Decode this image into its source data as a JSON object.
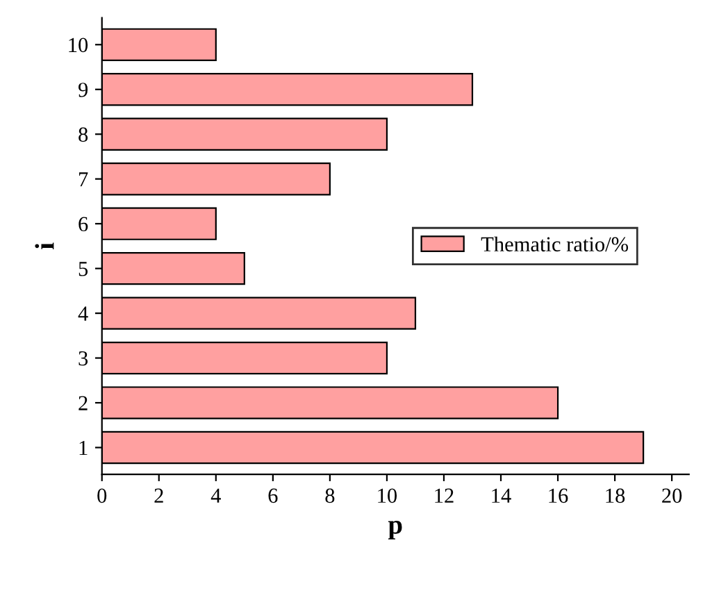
{
  "chart_data": {
    "type": "bar",
    "orientation": "horizontal",
    "xlabel": "p",
    "ylabel": "i",
    "categories": [
      "10",
      "9",
      "8",
      "7",
      "6",
      "5",
      "4",
      "3",
      "2",
      "1"
    ],
    "series": [
      {
        "name": "Thematic ratio/%",
        "color": "#ffa0a0",
        "values": [
          4,
          13,
          10,
          8,
          4,
          5,
          11,
          10,
          16,
          19
        ]
      }
    ],
    "xlim": [
      0,
      20.6
    ],
    "xticks": [
      0,
      2,
      4,
      6,
      8,
      10,
      12,
      14,
      16,
      18,
      20
    ],
    "grid": false,
    "legend": "right"
  }
}
